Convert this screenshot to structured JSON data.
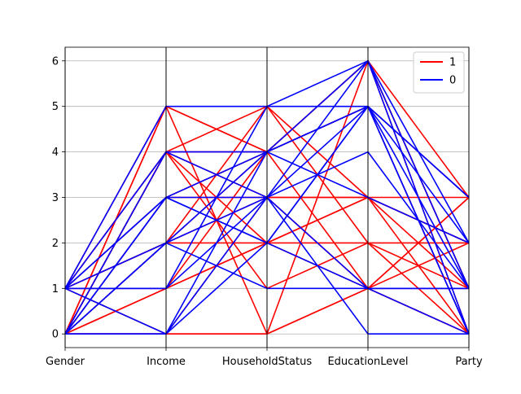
{
  "chart_data": {
    "type": "parallel_coordinates",
    "axes": [
      "Gender",
      "Income",
      "HouseholdStatus",
      "EducationLevel",
      "Party"
    ],
    "ylim": [
      -0.3,
      6.3
    ],
    "yticks": [
      "0",
      "1",
      "2",
      "3",
      "4",
      "5",
      "6"
    ],
    "grid": true,
    "legend_position": "top-right",
    "series": [
      {
        "name": "1",
        "color": "#ff0000",
        "lines": [
          [
            1,
            5,
            4,
            6,
            3
          ],
          [
            0,
            5,
            4,
            5,
            3
          ],
          [
            1,
            4,
            3,
            3,
            3
          ],
          [
            0,
            4,
            4,
            6,
            0
          ],
          [
            1,
            4,
            5,
            3,
            1
          ],
          [
            0,
            3,
            3,
            1,
            1
          ],
          [
            0,
            2,
            2,
            2,
            2
          ],
          [
            1,
            2,
            4,
            5,
            0
          ],
          [
            0,
            1,
            4,
            6,
            1
          ],
          [
            0,
            1,
            2,
            3,
            0
          ],
          [
            1,
            0,
            0,
            6,
            1
          ],
          [
            0,
            0,
            0,
            1,
            3
          ],
          [
            0,
            5,
            0,
            1,
            2
          ],
          [
            1,
            2,
            5,
            2,
            0
          ],
          [
            0,
            4,
            2,
            3,
            2
          ],
          [
            0,
            0,
            3,
            1,
            0
          ],
          [
            1,
            3,
            4,
            1,
            3
          ],
          [
            0,
            4,
            1,
            2,
            1
          ],
          [
            0,
            2,
            3,
            3,
            2
          ],
          [
            1,
            1,
            2,
            1,
            0
          ]
        ]
      },
      {
        "name": "0",
        "color": "#0000ff",
        "lines": [
          [
            1,
            5,
            5,
            5,
            3
          ],
          [
            1,
            4,
            4,
            5,
            2
          ],
          [
            1,
            3,
            3,
            4,
            1
          ],
          [
            0,
            3,
            2,
            5,
            0
          ],
          [
            0,
            2,
            1,
            1,
            0
          ],
          [
            1,
            1,
            3,
            6,
            1
          ],
          [
            0,
            0,
            2,
            1,
            1
          ],
          [
            1,
            0,
            3,
            0,
            0
          ],
          [
            0,
            3,
            4,
            6,
            2
          ],
          [
            1,
            2,
            3,
            5,
            3
          ],
          [
            0,
            4,
            3,
            1,
            1
          ],
          [
            1,
            1,
            5,
            6,
            0
          ],
          [
            0,
            0,
            4,
            5,
            1
          ],
          [
            1,
            3,
            2,
            5,
            0
          ],
          [
            0,
            2,
            4,
            3,
            2
          ]
        ]
      }
    ]
  }
}
